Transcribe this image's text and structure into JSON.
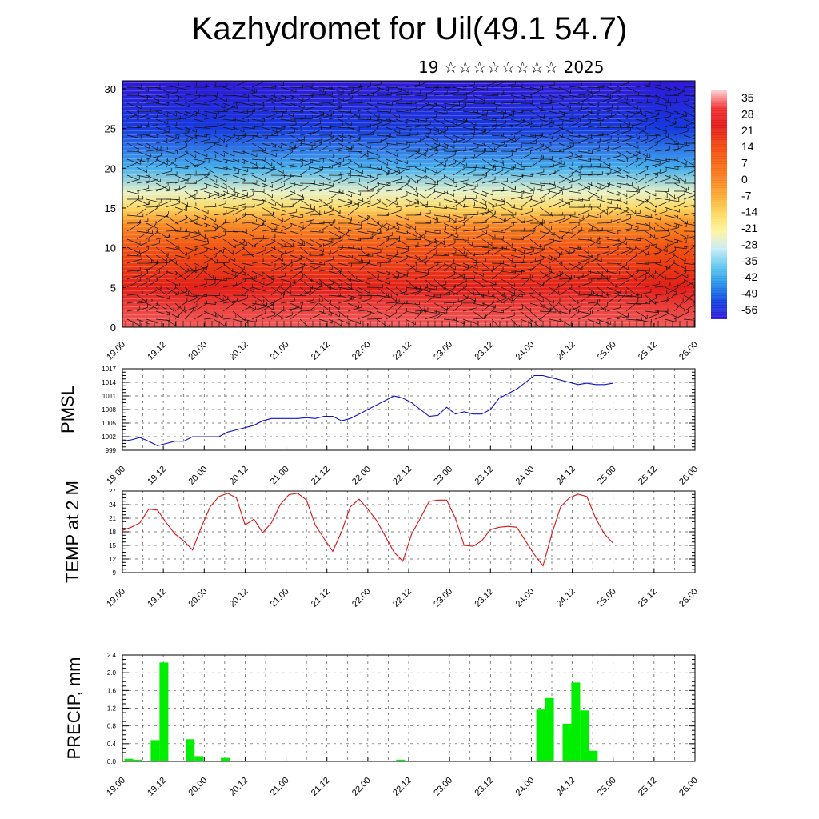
{
  "header": {
    "title": "Kazhydromet for Uil(49.1 54.7)",
    "subtitle": "19 ☆☆☆☆☆☆☆☆ 2025"
  },
  "colors": {
    "pmsl_line": "#1010cc",
    "temp_line": "#dd1111",
    "precip_bar": "#00ee00",
    "grid": "#555555"
  },
  "chart_data": [
    {
      "type": "heatmap",
      "title": "Kazhydromet for Uil(49.1 54.7)",
      "x_ticks": [
        "19.00",
        "19.12",
        "20.00",
        "20.12",
        "21.00",
        "21.12",
        "22.00",
        "22.12",
        "23.00",
        "23.12",
        "24.00",
        "24.12",
        "25.00",
        "25.12",
        "26.00"
      ],
      "y_ticks": [
        "0",
        "5",
        "10",
        "15",
        "20",
        "25",
        "30"
      ],
      "ylim": [
        0,
        31
      ],
      "overlay": "wind barbs",
      "colorbar": {
        "labels": [
          "35",
          "28",
          "21",
          "14",
          "7",
          "0",
          "-7",
          "-14",
          "-21",
          "-28",
          "-35",
          "-42",
          "-49",
          "-56"
        ],
        "colors": [
          "#ffd0d0",
          "#f03030",
          "#e01818",
          "#f04010",
          "#f46010",
          "#f88020",
          "#fbaa30",
          "#fdd860",
          "#fff4a0",
          "#c8ecf8",
          "#60c8f0",
          "#2090e8",
          "#1040e0",
          "#3018d8"
        ]
      },
      "temperature_profile": {
        "heights": [
          0,
          5,
          10,
          13,
          15,
          17,
          20,
          25,
          31
        ],
        "values": [
          30,
          20,
          10,
          -2,
          -14,
          -24,
          -38,
          -50,
          -56
        ]
      }
    },
    {
      "type": "line",
      "ylabel": "PMSL",
      "x_ticks": [
        "19.00",
        "19.12",
        "20.00",
        "20.12",
        "21.00",
        "21.12",
        "22.00",
        "22.12",
        "23.00",
        "23.12",
        "24.00",
        "24.12",
        "25.00",
        "25.12",
        "26.00"
      ],
      "y_ticks": [
        "999",
        "1002",
        "1005",
        "1008",
        "1011",
        "1014",
        "1017"
      ],
      "ylim": [
        999,
        1017
      ],
      "x": [
        0,
        3,
        6,
        9,
        12,
        15,
        18,
        21,
        24,
        27,
        30,
        33,
        36,
        39,
        42,
        45,
        48,
        51,
        54,
        57,
        60,
        63,
        66,
        69,
        72,
        75,
        78,
        81,
        84,
        87,
        90,
        93,
        96,
        99,
        102,
        105,
        108,
        111,
        114,
        117,
        120,
        123,
        126,
        129,
        132,
        135,
        138,
        141,
        144,
        147,
        150,
        153,
        156,
        159,
        162,
        165,
        168
      ],
      "values": [
        1001,
        1001.3,
        1001.8,
        1001,
        1000,
        1000.5,
        1001,
        1001,
        1002,
        1002,
        1002,
        1002,
        1003,
        1003.5,
        1004,
        1004.5,
        1005.5,
        1006,
        1006,
        1006,
        1006,
        1006.2,
        1006,
        1006.5,
        1006.5,
        1005.5,
        1006,
        1007,
        1008,
        1009,
        1010,
        1011,
        1010.5,
        1009.5,
        1008,
        1006.5,
        1006.7,
        1008.5,
        1007,
        1007.5,
        1007,
        1007,
        1008,
        1010.5,
        1011.5,
        1012.5,
        1014,
        1015.5,
        1015.5,
        1015,
        1014.5,
        1014,
        1013.5,
        1013.8,
        1013.5,
        1013.5,
        1013.8
      ],
      "series": [
        {
          "name": "",
          "color": "#1010cc"
        }
      ]
    },
    {
      "type": "line",
      "ylabel": "TEMP at 2 M",
      "x_ticks": [
        "19.00",
        "19.12",
        "20.00",
        "20.12",
        "21.00",
        "21.12",
        "22.00",
        "22.12",
        "23.00",
        "23.12",
        "24.00",
        "24.12",
        "25.00",
        "25.12",
        "26.00"
      ],
      "y_ticks": [
        "9",
        "12",
        "15",
        "18",
        "21",
        "24",
        "27"
      ],
      "ylim": [
        9,
        27
      ],
      "x": [
        0,
        3,
        6,
        9,
        12,
        15,
        18,
        21,
        24,
        27,
        30,
        33,
        36,
        39,
        42,
        45,
        48,
        51,
        54,
        57,
        60,
        63,
        66,
        69,
        72,
        75,
        78,
        81,
        84,
        87,
        90,
        93,
        96,
        99,
        102,
        105,
        108,
        111,
        114,
        117,
        120,
        123,
        126,
        129,
        132,
        135,
        138,
        141,
        144,
        147,
        150,
        153,
        156,
        159,
        162,
        165,
        168
      ],
      "values": [
        18.3,
        19,
        20,
        23,
        22.8,
        20,
        17.5,
        16,
        14,
        19,
        23.5,
        25.8,
        26.5,
        25.5,
        19.5,
        20.8,
        17.8,
        20,
        24,
        26.2,
        26.5,
        25,
        19.5,
        16.5,
        13.7,
        18,
        23.5,
        25.2,
        23,
        20.5,
        17,
        13.5,
        11.5,
        17.5,
        21,
        24.7,
        25,
        25,
        21,
        15,
        14.8,
        16,
        18.5,
        19,
        19.2,
        19,
        16,
        13,
        10.5,
        17.5,
        23.5,
        25.5,
        26.3,
        25.8,
        21,
        17.5,
        15.5
      ],
      "series": [
        {
          "name": "",
          "color": "#dd1111"
        }
      ]
    },
    {
      "type": "bar",
      "ylabel": "PRECIP, mm",
      "x_ticks": [
        "19.00",
        "19.12",
        "20.00",
        "20.12",
        "21.00",
        "21.12",
        "22.00",
        "22.12",
        "23.00",
        "23.12",
        "24.00",
        "24.12",
        "25.00",
        "25.12",
        "26.00"
      ],
      "y_ticks": [
        "0.0",
        "0.4",
        "0.8",
        "1.2",
        "1.6",
        "2.0",
        "2.4"
      ],
      "ylim": [
        0,
        2.4
      ],
      "x": [
        0,
        3,
        6,
        9,
        12,
        15,
        18,
        21,
        24,
        27,
        30,
        33,
        36,
        39,
        42,
        45,
        48,
        51,
        54,
        57,
        60,
        63,
        66,
        69,
        72,
        75,
        78,
        81,
        84,
        87,
        90,
        93,
        96,
        99,
        102,
        105,
        108,
        111,
        114,
        117,
        120,
        123,
        126,
        129,
        132,
        135,
        138,
        141,
        144,
        147,
        150,
        153,
        156,
        159,
        162,
        165,
        168
      ],
      "values": [
        0.06,
        0.04,
        0,
        0.48,
        2.23,
        0,
        0,
        0.5,
        0.12,
        0,
        0,
        0.08,
        0,
        0,
        0,
        0,
        0,
        0,
        0,
        0,
        0,
        0,
        0,
        0,
        0,
        0,
        0,
        0,
        0,
        0,
        0,
        0.04,
        0,
        0,
        0,
        0,
        0,
        0,
        0,
        0,
        0,
        0,
        0,
        0,
        0,
        0,
        0,
        1.17,
        1.43,
        0,
        0.85,
        1.78,
        1.15,
        0.24,
        0,
        0,
        0
      ],
      "series": [
        {
          "name": "",
          "color": "#00ee00"
        }
      ]
    }
  ]
}
